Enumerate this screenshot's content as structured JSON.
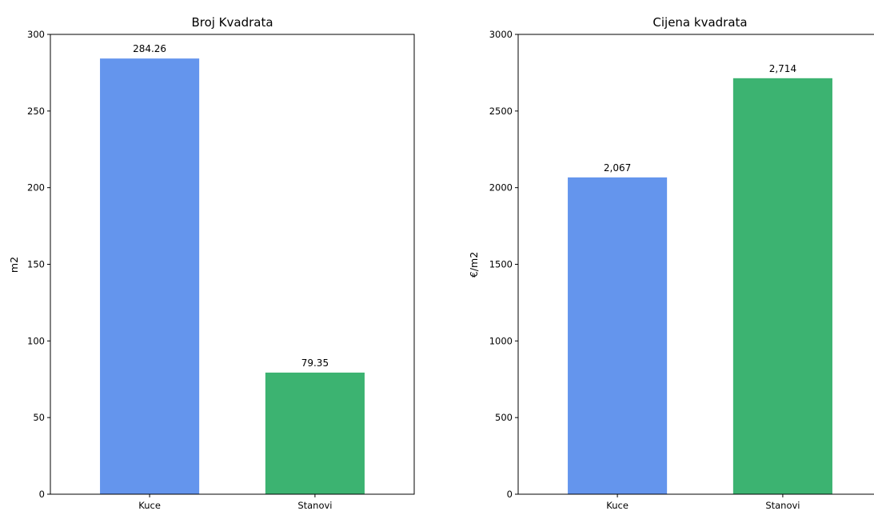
{
  "chart_data": [
    {
      "type": "bar",
      "title": "Broj Kvadrata",
      "xlabel": "",
      "ylabel": "m2",
      "categories": [
        "Kuce",
        "Stanovi"
      ],
      "values": [
        284.26,
        79.35
      ],
      "value_labels": [
        "284.26",
        "79.35"
      ],
      "colors": [
        "#6495ED",
        "#3CB371"
      ],
      "ylim": [
        0,
        300
      ],
      "yticks": [
        0,
        50,
        100,
        150,
        200,
        250,
        300
      ],
      "ytick_labels": [
        "0",
        "50",
        "100",
        "150",
        "200",
        "250",
        "300"
      ],
      "grid": false
    },
    {
      "type": "bar",
      "title": "Cijena kvadrata",
      "xlabel": "",
      "ylabel": "€/m2",
      "categories": [
        "Kuce",
        "Stanovi"
      ],
      "values": [
        2067,
        2714
      ],
      "value_labels": [
        "2,067",
        "2,714"
      ],
      "colors": [
        "#6495ED",
        "#3CB371"
      ],
      "ylim": [
        0,
        3000
      ],
      "yticks": [
        0,
        500,
        1000,
        1500,
        2000,
        2500,
        3000
      ],
      "ytick_labels": [
        "0",
        "500",
        "1000",
        "1500",
        "2000",
        "2500",
        "3000"
      ],
      "grid": false
    }
  ]
}
